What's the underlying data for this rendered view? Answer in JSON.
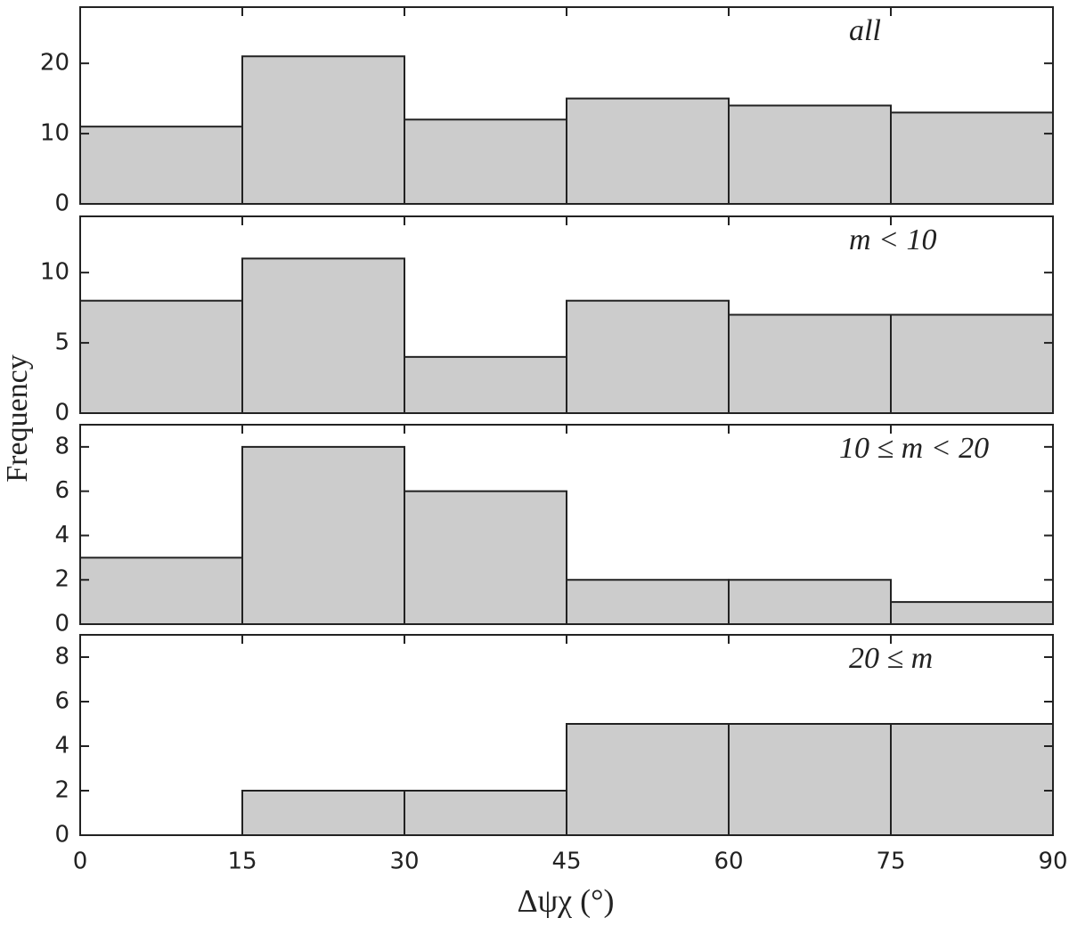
{
  "chart_data": [
    {
      "type": "histogram",
      "annotation": "all",
      "bins": [
        0,
        15,
        30,
        45,
        60,
        75,
        90
      ],
      "values": [
        11,
        21,
        12,
        15,
        14,
        13
      ],
      "color": "#cccccc",
      "xlim": [
        0,
        90
      ],
      "ylim": [
        0,
        28
      ],
      "yticks": [
        0,
        10,
        20
      ]
    },
    {
      "type": "histogram",
      "annotation": "m < 10",
      "bins": [
        0,
        15,
        30,
        45,
        60,
        75,
        90
      ],
      "values": [
        8,
        11,
        4,
        8,
        7,
        7
      ],
      "color": "#cccccc",
      "xlim": [
        0,
        90
      ],
      "ylim": [
        0,
        14
      ],
      "yticks": [
        0,
        5,
        10
      ]
    },
    {
      "type": "histogram",
      "annotation": "10 ≤ m < 20",
      "bins": [
        0,
        15,
        30,
        45,
        60,
        75,
        90
      ],
      "values": [
        3,
        8,
        6,
        2,
        2,
        1
      ],
      "color": "#cccccc",
      "xlim": [
        0,
        90
      ],
      "ylim": [
        0,
        9
      ],
      "yticks": [
        0,
        2,
        4,
        6,
        8
      ]
    },
    {
      "type": "histogram",
      "annotation": "20 ≤ m",
      "bins": [
        0,
        15,
        30,
        45,
        60,
        75,
        90
      ],
      "values": [
        0,
        2,
        2,
        5,
        5,
        5
      ],
      "color": "#cccccc",
      "xlim": [
        0,
        90
      ],
      "ylim": [
        0,
        9
      ],
      "yticks": [
        0,
        2,
        4,
        6,
        8
      ],
      "xticks": [
        0,
        15,
        30,
        45,
        60,
        75,
        90
      ],
      "xlabel": "Δψχ (°)",
      "ylabel": "Frequency"
    }
  ]
}
